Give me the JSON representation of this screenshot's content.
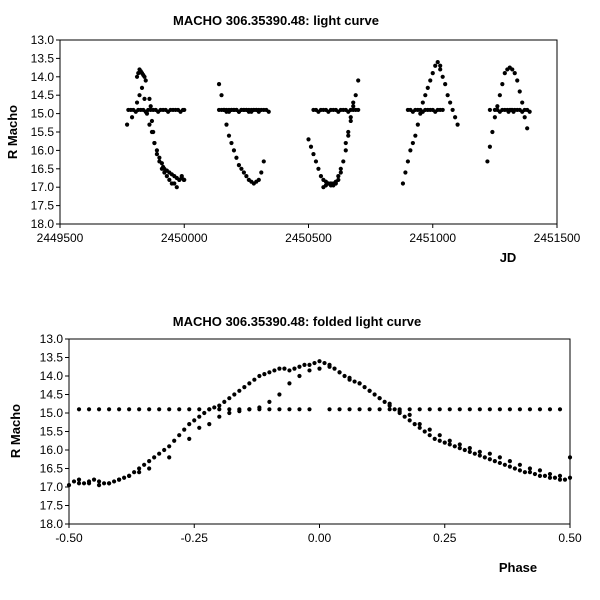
{
  "colors": {
    "background": "#ffffff",
    "marker": "#000000",
    "axis": "#000000"
  },
  "chart_data": [
    {
      "type": "scatter",
      "title": "MACHO 306.35390.48: light curve",
      "xlabel": "JD",
      "ylabel": "R Macho",
      "xlim": [
        2449500,
        2451500
      ],
      "ylim": [
        13.0,
        18.0
      ],
      "y_inverted": true,
      "grid": false,
      "x_ticks": [
        "2449500",
        "2450000",
        "2450500",
        "2451000",
        "2451500"
      ],
      "y_ticks": [
        "13.0",
        "13.5",
        "14.0",
        "14.5",
        "15.0",
        "15.5",
        "16.0",
        "16.5",
        "17.0",
        "17.5",
        "18.0"
      ],
      "series": [
        {
          "marker_color": "#000000",
          "x": [
            2449775,
            2449785,
            2449795,
            2449805,
            2449815,
            2449825,
            2449835,
            2449845,
            2449855,
            2449865,
            2449875,
            2449885,
            2449895,
            2449905,
            2449915,
            2449925,
            2449935,
            2449945,
            2449955,
            2449965,
            2449975,
            2449985,
            2449995,
            2450000,
            2449770,
            2449790,
            2449810,
            2449820,
            2449830,
            2449840,
            2449850,
            2449860,
            2449870,
            2449880,
            2449890,
            2449900,
            2449910,
            2449920,
            2449930,
            2449940,
            2449950,
            2449960,
            2449970,
            2449980,
            2449990,
            2450000,
            2449810,
            2449815,
            2449820,
            2449825,
            2449830,
            2449835,
            2449840,
            2449845,
            2449860,
            2449865,
            2449870,
            2449875,
            2449880,
            2449890,
            2449900,
            2449910,
            2449915,
            2449920,
            2449930,
            2449940,
            2449950,
            2449960,
            2449970,
            2449980,
            2449990,
            2449998,
            2450140,
            2450150,
            2450160,
            2450170,
            2450180,
            2450190,
            2450200,
            2450210,
            2450220,
            2450230,
            2450240,
            2450250,
            2450260,
            2450270,
            2450280,
            2450290,
            2450300,
            2450310,
            2450320,
            2450160,
            2450170,
            2450180,
            2450190,
            2450200,
            2450210,
            2450220,
            2450230,
            2450240,
            2450250,
            2450260,
            2450270,
            2450280,
            2450290,
            2450300,
            2450140,
            2450150,
            2450160,
            2450170,
            2450180,
            2450190,
            2450200,
            2450210,
            2450220,
            2450230,
            2450240,
            2450250,
            2450260,
            2450270,
            2450280,
            2450290,
            2450300,
            2450310,
            2450320,
            2450330,
            2450340,
            2450500,
            2450510,
            2450520,
            2450530,
            2450540,
            2450550,
            2450560,
            2450570,
            2450580,
            2450590,
            2450600,
            2450610,
            2450620,
            2450630,
            2450640,
            2450650,
            2450660,
            2450670,
            2450680,
            2450690,
            2450520,
            2450530,
            2450540,
            2450550,
            2450560,
            2450570,
            2450580,
            2450590,
            2450600,
            2450610,
            2450620,
            2450630,
            2450640,
            2450650,
            2450660,
            2450670,
            2450680,
            2450690,
            2450700,
            2450560,
            2450570,
            2450580,
            2450590,
            2450600,
            2450610,
            2450620,
            2450630,
            2450650,
            2450660,
            2450670,
            2450680,
            2450700,
            2450880,
            2450890,
            2450900,
            2450910,
            2450920,
            2450930,
            2450940,
            2450950,
            2450960,
            2450970,
            2450980,
            2450990,
            2451000,
            2451010,
            2451020,
            2451030,
            2450900,
            2450910,
            2450920,
            2450930,
            2450940,
            2450950,
            2450960,
            2450970,
            2450980,
            2450990,
            2451000,
            2451010,
            2451020,
            2451030,
            2451040,
            2451030,
            2451040,
            2451050,
            2451060,
            2451070,
            2451080,
            2451090,
            2451100,
            2451220,
            2451230,
            2451240,
            2451250,
            2451260,
            2451270,
            2451280,
            2451290,
            2451300,
            2451310,
            2451320,
            2451330,
            2451340,
            2451350,
            2451360,
            2451370,
            2451380,
            2451230,
            2451250,
            2451260,
            2451270,
            2451280,
            2451290,
            2451300,
            2451305,
            2451310,
            2451315,
            2451320,
            2451325,
            2451330,
            2451340,
            2451350,
            2451360,
            2451370,
            2451380,
            2451390
          ],
          "y": [
            14.9,
            14.9,
            14.9,
            14.95,
            14.9,
            14.9,
            14.9,
            14.95,
            14.9,
            14.9,
            14.9,
            14.9,
            14.95,
            14.9,
            14.9,
            14.9,
            14.95,
            14.9,
            14.9,
            14.9,
            14.9,
            14.95,
            14.9,
            14.9,
            15.3,
            15.1,
            14.7,
            14.5,
            14.3,
            14.6,
            15.0,
            15.3,
            15.5,
            15.8,
            16.1,
            16.3,
            16.5,
            16.6,
            16.7,
            16.8,
            16.9,
            16.9,
            17.0,
            16.8,
            16.7,
            16.8,
            14.0,
            13.9,
            13.8,
            13.85,
            13.9,
            13.95,
            14.0,
            14.1,
            14.6,
            14.8,
            15.2,
            15.5,
            15.8,
            16.0,
            16.2,
            16.35,
            16.45,
            16.5,
            16.55,
            16.6,
            16.65,
            16.7,
            16.75,
            16.8,
            16.75,
            16.8,
            14.2,
            14.5,
            14.9,
            15.3,
            15.6,
            15.8,
            16.0,
            16.2,
            16.4,
            16.5,
            16.6,
            16.7,
            16.8,
            16.85,
            16.9,
            16.85,
            16.8,
            16.6,
            16.3,
            14.9,
            14.9,
            14.95,
            14.9,
            14.9,
            14.9,
            14.95,
            14.9,
            14.9,
            14.9,
            14.95,
            14.9,
            14.9,
            14.9,
            14.95,
            14.9,
            14.9,
            14.9,
            14.95,
            14.9,
            14.9,
            14.9,
            14.9,
            14.95,
            14.9,
            14.9,
            14.9,
            14.9,
            14.95,
            14.9,
            14.9,
            14.9,
            14.9,
            14.9,
            14.9,
            14.95,
            15.7,
            15.9,
            16.1,
            16.3,
            16.5,
            16.7,
            16.8,
            16.85,
            16.9,
            16.9,
            16.95,
            16.9,
            16.8,
            16.6,
            16.3,
            16.0,
            15.6,
            15.2,
            14.8,
            14.5,
            14.9,
            14.9,
            14.95,
            14.9,
            14.9,
            14.9,
            14.95,
            14.9,
            14.9,
            14.9,
            14.95,
            14.9,
            14.9,
            14.9,
            14.95,
            14.9,
            14.9,
            14.9,
            14.9,
            17.0,
            16.95,
            16.9,
            16.95,
            16.9,
            16.85,
            16.7,
            16.5,
            15.8,
            15.5,
            15.1,
            14.7,
            14.1,
            16.9,
            16.6,
            16.3,
            16.0,
            15.8,
            15.6,
            15.3,
            15.0,
            14.7,
            14.5,
            14.3,
            14.1,
            13.9,
            13.7,
            13.6,
            13.7,
            14.9,
            14.9,
            14.95,
            14.9,
            14.9,
            14.9,
            14.95,
            14.9,
            14.9,
            14.9,
            14.9,
            14.95,
            14.9,
            14.9,
            14.9,
            13.8,
            14.0,
            14.2,
            14.5,
            14.7,
            14.9,
            15.1,
            15.3,
            16.3,
            15.9,
            15.5,
            15.1,
            14.8,
            14.5,
            14.2,
            13.9,
            13.8,
            13.75,
            13.8,
            13.9,
            14.1,
            14.4,
            14.7,
            15.1,
            15.4,
            14.9,
            14.9,
            14.9,
            14.95,
            14.9,
            14.9,
            14.9,
            14.95,
            14.9,
            14.9,
            14.9,
            14.95,
            14.9,
            14.9,
            14.9,
            14.95,
            14.9,
            14.9,
            14.95
          ]
        }
      ]
    },
    {
      "type": "scatter",
      "title": "MACHO 306.35390.48: folded light curve",
      "xlabel": "Phase",
      "ylabel": "R Macho",
      "xlim": [
        -0.5,
        0.5
      ],
      "ylim": [
        13.0,
        18.0
      ],
      "y_inverted": true,
      "grid": false,
      "x_ticks": [
        "-0.50",
        "-0.25",
        "0.00",
        "0.25",
        "0.50"
      ],
      "y_ticks": [
        "13.0",
        "13.5",
        "14.0",
        "14.5",
        "15.0",
        "15.5",
        "16.0",
        "16.5",
        "17.0",
        "17.5",
        "18.0"
      ],
      "series": [
        {
          "marker_color": "#000000",
          "x": [
            -0.49,
            -0.48,
            -0.47,
            -0.46,
            -0.45,
            -0.44,
            -0.43,
            -0.42,
            -0.41,
            -0.4,
            -0.39,
            -0.38,
            -0.37,
            -0.36,
            -0.35,
            -0.34,
            -0.33,
            -0.32,
            -0.31,
            -0.3,
            -0.29,
            -0.28,
            -0.27,
            -0.26,
            -0.25,
            -0.24,
            -0.23,
            -0.22,
            -0.21,
            -0.2,
            -0.19,
            -0.18,
            -0.17,
            -0.16,
            -0.15,
            -0.14,
            -0.13,
            -0.12,
            -0.11,
            -0.1,
            -0.09,
            -0.08,
            -0.07,
            -0.06,
            -0.05,
            -0.04,
            -0.03,
            -0.02,
            -0.01,
            0.0,
            0.01,
            0.02,
            0.03,
            0.04,
            0.05,
            0.06,
            0.07,
            0.08,
            0.09,
            0.1,
            0.11,
            0.12,
            0.13,
            0.14,
            0.15,
            0.16,
            0.17,
            0.18,
            0.19,
            0.2,
            0.21,
            0.22,
            0.23,
            0.24,
            0.25,
            0.26,
            0.27,
            0.28,
            0.29,
            0.3,
            0.31,
            0.32,
            0.33,
            0.34,
            0.35,
            0.36,
            0.37,
            0.38,
            0.39,
            0.4,
            0.41,
            0.42,
            0.43,
            0.44,
            0.45,
            0.46,
            0.47,
            0.48,
            0.49,
            0.5,
            -0.48,
            -0.46,
            -0.44,
            -0.42,
            -0.4,
            -0.38,
            -0.36,
            -0.34,
            -0.32,
            -0.3,
            -0.28,
            -0.26,
            -0.24,
            -0.22,
            -0.2,
            -0.18,
            -0.16,
            -0.14,
            -0.12,
            -0.1,
            -0.08,
            -0.06,
            -0.04,
            -0.02,
            0.02,
            0.04,
            0.06,
            0.08,
            0.1,
            0.12,
            0.14,
            0.16,
            0.18,
            0.2,
            0.22,
            0.24,
            0.26,
            0.28,
            0.3,
            0.32,
            0.34,
            0.36,
            0.38,
            0.4,
            0.42,
            0.44,
            0.46,
            0.48,
            -0.5,
            -0.48,
            -0.46,
            -0.44,
            -0.42,
            -0.4,
            -0.38,
            -0.36,
            -0.34,
            -0.3,
            -0.26,
            -0.24,
            -0.22,
            -0.2,
            -0.18,
            -0.16,
            -0.14,
            -0.12,
            -0.1,
            -0.08,
            -0.06,
            -0.04,
            -0.02,
            0.0,
            0.02,
            0.04,
            0.06,
            0.08,
            0.1,
            0.12,
            0.14,
            0.16,
            0.18,
            0.2,
            0.22,
            0.24,
            0.26,
            0.28,
            0.3,
            0.32,
            0.34,
            0.36,
            0.38,
            0.4,
            0.42,
            0.44,
            0.46,
            0.48,
            0.5
          ],
          "y": [
            16.85,
            16.9,
            16.9,
            16.85,
            16.8,
            16.85,
            16.9,
            16.9,
            16.85,
            16.8,
            16.75,
            16.7,
            16.6,
            16.5,
            16.4,
            16.3,
            16.2,
            16.1,
            16.0,
            15.9,
            15.75,
            15.6,
            15.45,
            15.3,
            15.2,
            15.1,
            15.0,
            14.9,
            14.85,
            14.8,
            14.7,
            14.6,
            14.5,
            14.4,
            14.3,
            14.2,
            14.1,
            14.0,
            13.95,
            13.9,
            13.85,
            13.8,
            13.8,
            13.85,
            13.8,
            13.75,
            13.7,
            13.7,
            13.65,
            13.6,
            13.65,
            13.7,
            13.8,
            13.9,
            14.0,
            14.1,
            14.15,
            14.2,
            14.3,
            14.4,
            14.5,
            14.6,
            14.7,
            14.8,
            14.9,
            15.0,
            15.1,
            15.2,
            15.3,
            15.4,
            15.5,
            15.6,
            15.7,
            15.75,
            15.8,
            15.85,
            15.9,
            15.95,
            16.0,
            16.05,
            16.1,
            16.15,
            16.2,
            16.25,
            16.3,
            16.35,
            16.4,
            16.45,
            16.5,
            16.55,
            16.6,
            16.6,
            16.65,
            16.7,
            16.7,
            16.75,
            16.75,
            16.8,
            16.8,
            16.2,
            14.9,
            14.9,
            14.9,
            14.9,
            14.9,
            14.9,
            14.9,
            14.9,
            14.9,
            14.9,
            14.9,
            14.9,
            14.9,
            14.9,
            14.9,
            14.9,
            14.9,
            14.9,
            14.9,
            14.9,
            14.9,
            14.9,
            14.9,
            14.9,
            14.9,
            14.9,
            14.9,
            14.9,
            14.9,
            14.9,
            14.9,
            14.9,
            14.9,
            14.9,
            14.9,
            14.9,
            14.9,
            14.9,
            14.9,
            14.9,
            14.9,
            14.9,
            14.9,
            14.9,
            14.9,
            14.9,
            14.9,
            14.9,
            16.95,
            16.8,
            16.9,
            16.95,
            16.9,
            16.8,
            16.7,
            16.6,
            16.5,
            16.2,
            15.7,
            15.4,
            15.3,
            15.1,
            15.0,
            14.95,
            14.9,
            14.85,
            14.7,
            14.5,
            14.2,
            14.0,
            13.85,
            13.8,
            13.75,
            13.9,
            14.05,
            14.2,
            14.4,
            14.6,
            14.75,
            14.95,
            15.05,
            15.3,
            15.45,
            15.6,
            15.75,
            15.85,
            15.95,
            16.05,
            16.1,
            16.2,
            16.3,
            16.4,
            16.5,
            16.55,
            16.65,
            16.7,
            16.75
          ]
        }
      ]
    }
  ]
}
